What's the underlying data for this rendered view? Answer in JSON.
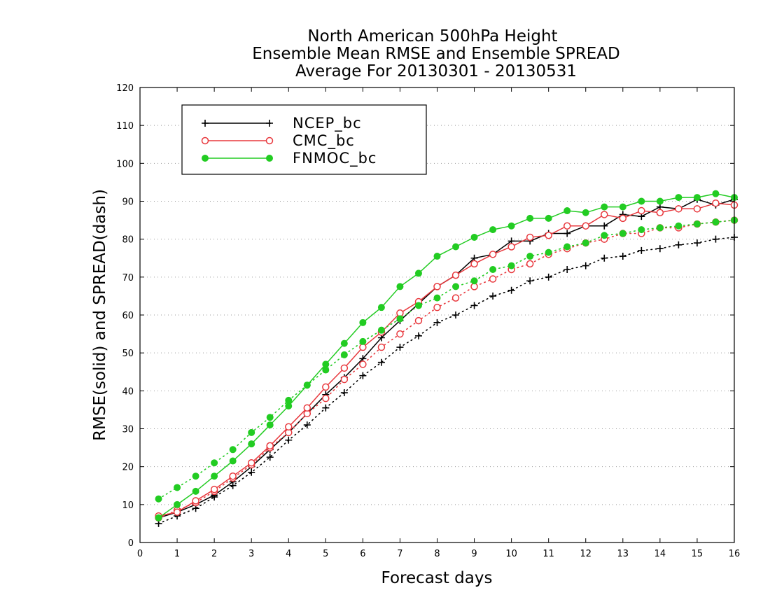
{
  "colors": {
    "NCEP_bc": "#000000",
    "CMC_bc": "#e8383d",
    "FNMOC_bc": "#22cc22"
  },
  "chart_data": {
    "type": "line",
    "title": [
      "North American 500hPa Height",
      "Ensemble Mean RMSE and Ensemble SPREAD",
      "Average For 20130301 - 20130531"
    ],
    "xlabel": "Forecast days",
    "ylabel": "RMSE(solid) and SPREAD(dash)",
    "xlim": [
      0,
      16
    ],
    "ylim": [
      0,
      120
    ],
    "xticks": [
      "0",
      "1",
      "2",
      "3",
      "4",
      "5",
      "6",
      "7",
      "8",
      "9",
      "10",
      "11",
      "12",
      "13",
      "14",
      "15",
      "16"
    ],
    "yticks": [
      "0",
      "10",
      "20",
      "30",
      "40",
      "50",
      "60",
      "70",
      "80",
      "90",
      "100",
      "110",
      "120"
    ],
    "grid": "horizontal-dotted",
    "legend_position": "top-left",
    "x": [
      0.5,
      1,
      1.5,
      2,
      2.5,
      3,
      3.5,
      4,
      4.5,
      5,
      5.5,
      6,
      6.5,
      7,
      7.5,
      8,
      8.5,
      9,
      9.5,
      10,
      10.5,
      11,
      11.5,
      12,
      12.5,
      13,
      13.5,
      14,
      14.5,
      15,
      15.5,
      16
    ],
    "series": [
      {
        "name": "NCEP_bc",
        "marker": "plus",
        "rmse": [
          6.5,
          8,
          10,
          12.5,
          16,
          20,
          24.5,
          29,
          34,
          39,
          43.5,
          48.5,
          54,
          58.5,
          63,
          67.5,
          70.5,
          75,
          76,
          79.5,
          79.5,
          81.5,
          81.5,
          83.5,
          83.5,
          86.5,
          86,
          88.5,
          88,
          90.5,
          89,
          90.5
        ],
        "spread": [
          5,
          7,
          9,
          12,
          15,
          18.5,
          22.5,
          27,
          31,
          35.5,
          39.5,
          44,
          47.5,
          51.5,
          54.5,
          58,
          60,
          62.5,
          65,
          66.5,
          69,
          70,
          72,
          73,
          75,
          75.5,
          77,
          77.5,
          78.5,
          79,
          80,
          80.5
        ]
      },
      {
        "name": "CMC_bc",
        "marker": "open-circle",
        "rmse": [
          7,
          8,
          11,
          14,
          17.5,
          21,
          25.5,
          30.5,
          35.5,
          41,
          46,
          51.5,
          55.5,
          60.5,
          63.5,
          67.5,
          70.5,
          73.5,
          76,
          78,
          80.5,
          81,
          83.5,
          83.5,
          86.5,
          85.5,
          87.5,
          87,
          88,
          88,
          89.5,
          89
        ],
        "spread": [
          6.5,
          8.5,
          10.5,
          13.5,
          17,
          20.5,
          25,
          29,
          34,
          38,
          43,
          47,
          51.5,
          55,
          58.5,
          62,
          64.5,
          67.5,
          69.5,
          72,
          73.5,
          76,
          77.5,
          79,
          80,
          81.5,
          81.5,
          83,
          83,
          84,
          84.5,
          85
        ]
      },
      {
        "name": "FNMOC_bc",
        "marker": "filled-circle",
        "rmse": [
          6.5,
          10,
          13.5,
          17.5,
          21.5,
          26,
          31,
          36,
          41.5,
          47,
          52.5,
          58,
          62,
          67.5,
          71,
          75.5,
          78,
          80.5,
          82.5,
          83.5,
          85.5,
          85.5,
          87.5,
          87,
          88.5,
          88.5,
          90,
          90,
          91,
          91,
          92,
          91
        ],
        "spread": [
          11.5,
          14.5,
          17.5,
          21,
          24.5,
          29,
          33,
          37.5,
          41.5,
          45.5,
          49.5,
          53,
          56,
          59,
          62.5,
          64.5,
          67.5,
          69,
          72,
          73,
          75.5,
          76.5,
          78,
          79,
          81,
          81.5,
          82.5,
          83,
          83.5,
          84,
          84.5,
          85
        ]
      }
    ]
  }
}
